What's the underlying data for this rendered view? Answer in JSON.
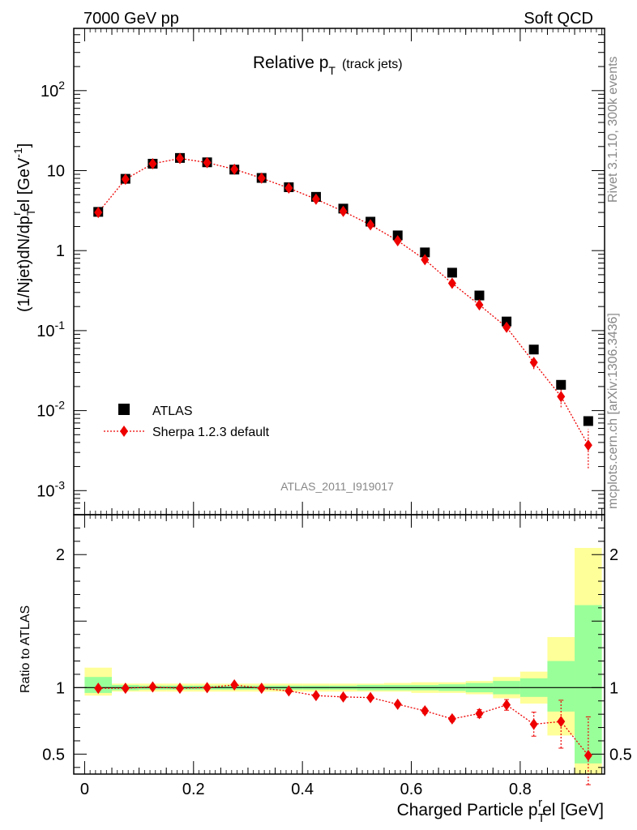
{
  "header": {
    "left": "7000 GeV pp",
    "right": "Soft QCD"
  },
  "side_texts": {
    "rivet": "Rivet 3.1.10,  300k events",
    "mcplots": "mcplots.cern.ch [arXiv:1306.3436]"
  },
  "colors": {
    "atlas": "#000000",
    "sherpa": "#ee0000",
    "band_inner": "#99ff99",
    "band_outer": "#ffff99"
  },
  "chart_data": [
    {
      "type": "scatter",
      "title": "Relative p_T (track jets)",
      "title_main": "Relative p",
      "title_sub": "T",
      "title_extra": "(track jets)",
      "ylabel": "(1/Njet)dN/dp_T^rel [GeV^-1]",
      "ylabel_parts": [
        "(1/Njet)dN/dp",
        "T",
        "r",
        "el [GeV",
        "-1",
        "]"
      ],
      "yscale": "log",
      "ylim": [
        0.0005,
        600
      ],
      "xlim": [
        -0.02,
        0.955
      ],
      "yticks": [
        {
          "value": 0.001,
          "base": "10",
          "exp": "-3"
        },
        {
          "value": 0.01,
          "base": "10",
          "exp": "-2"
        },
        {
          "value": 0.1,
          "base": "10",
          "exp": "-1"
        },
        {
          "value": 1,
          "base": "1",
          "exp": ""
        },
        {
          "value": 10,
          "base": "10",
          "exp": ""
        },
        {
          "value": 100,
          "base": "10",
          "exp": "2"
        }
      ],
      "watermark": "ATLAS_2011_I919017",
      "legend": {
        "placement": "lower-left",
        "entries": [
          {
            "label": "ATLAS",
            "marker": "square",
            "color": "#000000"
          },
          {
            "label": "Sherpa 1.2.3 default",
            "marker": "diamond",
            "color": "#ee0000"
          }
        ]
      },
      "x": [
        0.025,
        0.075,
        0.125,
        0.175,
        0.225,
        0.275,
        0.325,
        0.375,
        0.425,
        0.475,
        0.525,
        0.575,
        0.625,
        0.675,
        0.725,
        0.775,
        0.825,
        0.875,
        0.925
      ],
      "series": [
        {
          "name": "ATLAS",
          "values": [
            3.05,
            7.9,
            12.2,
            14.4,
            12.7,
            10.3,
            8.1,
            6.2,
            4.7,
            3.35,
            2.3,
            1.55,
            0.95,
            0.53,
            0.275,
            0.13,
            0.058,
            0.021,
            0.0074
          ]
        },
        {
          "name": "Sherpa 1.2.3 default",
          "values": [
            3.0,
            7.8,
            12.2,
            14.2,
            12.6,
            10.4,
            8.05,
            6.05,
            4.4,
            3.1,
            2.1,
            1.33,
            0.77,
            0.39,
            0.21,
            0.11,
            0.04,
            0.015,
            0.0037
          ],
          "err_low": [
            0.0,
            0.0,
            0.0,
            0.0,
            0.0,
            0.0,
            0.0,
            0.0,
            0.0,
            0.0,
            0.0,
            0.0,
            0.0,
            0.0,
            0.0,
            0.0,
            0.007,
            0.004,
            0.0018
          ],
          "err_high": [
            0.0,
            0.0,
            0.0,
            0.0,
            0.0,
            0.0,
            0.0,
            0.0,
            0.0,
            0.0,
            0.0,
            0.0,
            0.0,
            0.0,
            0.0,
            0.0,
            0.007,
            0.004,
            0.0022
          ]
        }
      ]
    },
    {
      "type": "scatter",
      "ylabel": "Ratio to ATLAS",
      "xlabel": "Charged Particle p_T^rel [GeV]",
      "xlabel_parts": [
        "Charged Particle p",
        "T",
        "r",
        "el [GeV]"
      ],
      "xlim": [
        -0.02,
        0.955
      ],
      "ylim": [
        0.35,
        2.3
      ],
      "xticks": [
        {
          "value": 0,
          "label": "0"
        },
        {
          "value": 0.2,
          "label": "0.2"
        },
        {
          "value": 0.4,
          "label": "0.4"
        },
        {
          "value": 0.6,
          "label": "0.6"
        },
        {
          "value": 0.8,
          "label": "0.8"
        }
      ],
      "yticks": [
        {
          "value": 0.5,
          "label": "0.5"
        },
        {
          "value": 1,
          "label": "1"
        },
        {
          "value": 2,
          "label": "2"
        }
      ],
      "bins": [
        [
          0.0,
          0.05
        ],
        [
          0.05,
          0.1
        ],
        [
          0.1,
          0.15
        ],
        [
          0.15,
          0.2
        ],
        [
          0.2,
          0.25
        ],
        [
          0.25,
          0.3
        ],
        [
          0.3,
          0.35
        ],
        [
          0.35,
          0.4
        ],
        [
          0.4,
          0.45
        ],
        [
          0.45,
          0.5
        ],
        [
          0.5,
          0.55
        ],
        [
          0.55,
          0.6
        ],
        [
          0.6,
          0.65
        ],
        [
          0.65,
          0.7
        ],
        [
          0.7,
          0.75
        ],
        [
          0.75,
          0.8
        ],
        [
          0.8,
          0.85
        ],
        [
          0.85,
          0.9
        ],
        [
          0.9,
          0.95
        ]
      ],
      "band_inner": [
        [
          0.96,
          1.08
        ],
        [
          0.98,
          1.02
        ],
        [
          0.985,
          1.015
        ],
        [
          0.985,
          1.015
        ],
        [
          0.985,
          1.015
        ],
        [
          0.985,
          1.015
        ],
        [
          0.985,
          1.015
        ],
        [
          0.985,
          1.015
        ],
        [
          0.985,
          1.015
        ],
        [
          0.985,
          1.015
        ],
        [
          0.98,
          1.02
        ],
        [
          0.98,
          1.02
        ],
        [
          0.98,
          1.02
        ],
        [
          0.975,
          1.025
        ],
        [
          0.965,
          1.035
        ],
        [
          0.95,
          1.05
        ],
        [
          0.93,
          1.07
        ],
        [
          0.82,
          1.2
        ],
        [
          0.43,
          1.62
        ]
      ],
      "band_outer": [
        [
          0.94,
          1.15
        ],
        [
          0.97,
          1.03
        ],
        [
          0.97,
          1.03
        ],
        [
          0.97,
          1.03
        ],
        [
          0.97,
          1.03
        ],
        [
          0.97,
          1.03
        ],
        [
          0.97,
          1.03
        ],
        [
          0.97,
          1.03
        ],
        [
          0.97,
          1.03
        ],
        [
          0.97,
          1.03
        ],
        [
          0.97,
          1.03
        ],
        [
          0.97,
          1.035
        ],
        [
          0.96,
          1.04
        ],
        [
          0.96,
          1.04
        ],
        [
          0.95,
          1.05
        ],
        [
          0.92,
          1.08
        ],
        [
          0.88,
          1.12
        ],
        [
          0.64,
          1.38
        ],
        [
          0.35,
          2.05
        ]
      ],
      "series": [
        {
          "name": "Sherpa 1.2.3 default",
          "x": [
            0.025,
            0.075,
            0.125,
            0.175,
            0.225,
            0.275,
            0.325,
            0.375,
            0.425,
            0.475,
            0.525,
            0.575,
            0.625,
            0.675,
            0.725,
            0.775,
            0.825,
            0.875,
            0.925
          ],
          "values": [
            0.995,
            0.995,
            1.005,
            0.995,
            1.0,
            1.02,
            0.995,
            0.975,
            0.94,
            0.93,
            0.925,
            0.875,
            0.825,
            0.765,
            0.805,
            0.87,
            0.725,
            0.745,
            0.49
          ],
          "err_low": [
            0.0,
            0.0,
            0.0,
            0.0,
            0.0,
            0.0,
            0.0,
            0.0,
            0.0,
            0.0,
            0.0,
            0.0,
            0.02,
            0.02,
            0.03,
            0.04,
            0.09,
            0.2,
            0.22
          ],
          "err_high": [
            0.0,
            0.0,
            0.0,
            0.0,
            0.0,
            0.0,
            0.0,
            0.0,
            0.0,
            0.0,
            0.0,
            0.0,
            0.02,
            0.02,
            0.03,
            0.04,
            0.09,
            0.16,
            0.29
          ]
        }
      ]
    }
  ]
}
